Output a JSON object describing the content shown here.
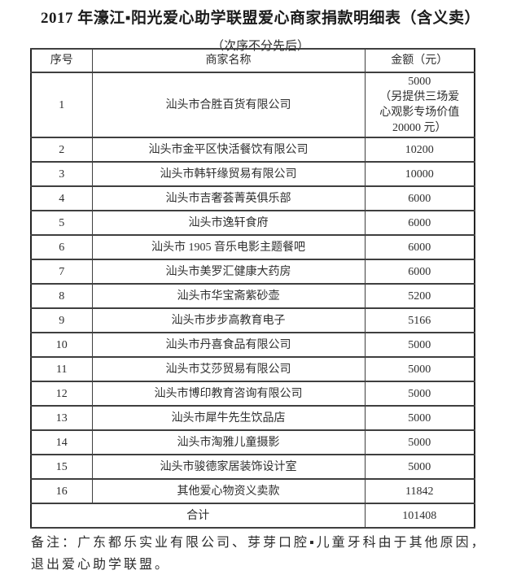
{
  "title": "2017 年濠江▪阳光爱心助学联盟爱心商家捐款明细表（含义卖）",
  "subtitle": "（次序不分先后）",
  "table": {
    "headers": [
      "序号",
      "商家名称",
      "金额（元）"
    ],
    "rows": [
      {
        "seq": "1",
        "name": "汕头市合胜百货有限公司",
        "amount_lines": [
          "5000",
          "（另提供三场爱",
          "心观影专场价值",
          "20000 元）"
        ]
      },
      {
        "seq": "2",
        "name": "汕头市金平区快活餐饮有限公司",
        "amount_lines": [
          "10200"
        ]
      },
      {
        "seq": "3",
        "name": "汕头市韩轩缘贸易有限公司",
        "amount_lines": [
          "10000"
        ]
      },
      {
        "seq": "4",
        "name": "汕头市吉奢荟菁英俱乐部",
        "amount_lines": [
          "6000"
        ]
      },
      {
        "seq": "5",
        "name": "汕头市逸轩食府",
        "amount_lines": [
          "6000"
        ]
      },
      {
        "seq": "6",
        "name": "汕头市 1905 音乐电影主题餐吧",
        "amount_lines": [
          "6000"
        ]
      },
      {
        "seq": "7",
        "name": "汕头市美罗汇健康大药房",
        "amount_lines": [
          "6000"
        ]
      },
      {
        "seq": "8",
        "name": "汕头市华宝斋紫砂壶",
        "amount_lines": [
          "5200"
        ]
      },
      {
        "seq": "9",
        "name": "汕头市步步高教育电子",
        "amount_lines": [
          "5166"
        ]
      },
      {
        "seq": "10",
        "name": "汕头市丹喜食品有限公司",
        "amount_lines": [
          "5000"
        ]
      },
      {
        "seq": "11",
        "name": "汕头市艾莎贸易有限公司",
        "amount_lines": [
          "5000"
        ]
      },
      {
        "seq": "12",
        "name": "汕头市博印教育咨询有限公司",
        "amount_lines": [
          "5000"
        ]
      },
      {
        "seq": "13",
        "name": "汕头市犀牛先生饮品店",
        "amount_lines": [
          "5000"
        ]
      },
      {
        "seq": "14",
        "name": "汕头市淘雅儿童摄影",
        "amount_lines": [
          "5000"
        ]
      },
      {
        "seq": "15",
        "name": "汕头市骏德家居装饰设计室",
        "amount_lines": [
          "5000"
        ]
      },
      {
        "seq": "16",
        "name": "其他爱心物资义卖款",
        "amount_lines": [
          "11842"
        ]
      }
    ],
    "total": {
      "label": "合计",
      "amount": "101408"
    }
  },
  "footnote": [
    "备注：广东都乐实业有限公司、芽芽口腔▪儿童牙科由于其他原因，",
    "退出爱心助学联盟。"
  ]
}
